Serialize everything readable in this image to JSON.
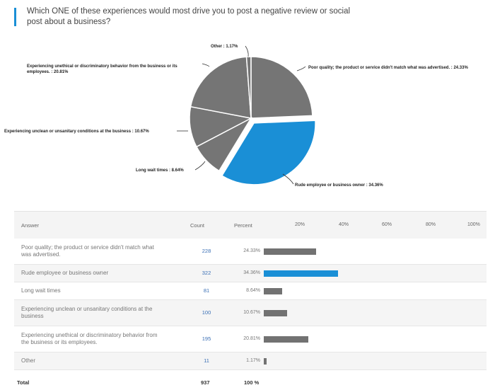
{
  "question": "Which ONE of these experiences would most drive you to post a negative review or social post about a business?",
  "colors": {
    "accent": "#1a8fd6",
    "slice": "#757575",
    "bar": "#727272"
  },
  "chart_data": {
    "type": "pie",
    "slices": [
      {
        "label": "Poor quality; the product or service didn't match what was advertised. : 24.33%",
        "value": 24.33,
        "highlight": false
      },
      {
        "label": "Rude employee or business owner : 34.36%",
        "value": 34.36,
        "highlight": true
      },
      {
        "label": "Long wait times : 8.64%",
        "value": 8.64,
        "highlight": false
      },
      {
        "label": "Experiencing unclean or unsanitary conditions at the business : 10.67%",
        "value": 10.67,
        "highlight": false
      },
      {
        "label": "Experiencing unethical or discriminatory behavior from the business or its employees. : 20.81%",
        "value": 20.81,
        "highlight": false
      },
      {
        "label": "Other : 1.17%",
        "value": 1.17,
        "highlight": false
      }
    ]
  },
  "table": {
    "headers": {
      "answer": "Answer",
      "count": "Count",
      "percent": "Percent"
    },
    "ticks": [
      "20%",
      "40%",
      "60%",
      "80%",
      "100%"
    ],
    "rows": [
      {
        "answer": "Poor quality; the product or service didn't match what was advertised.",
        "count": "228",
        "percent": "24.33%",
        "value": 24.33,
        "highlight": false
      },
      {
        "answer": "Rude employee or business owner",
        "count": "322",
        "percent": "34.36%",
        "value": 34.36,
        "highlight": true
      },
      {
        "answer": "Long wait times",
        "count": "81",
        "percent": "8.64%",
        "value": 8.64,
        "highlight": false
      },
      {
        "answer": "Experiencing unclean or unsanitary conditions at the business",
        "count": "100",
        "percent": "10.67%",
        "value": 10.67,
        "highlight": false
      },
      {
        "answer": "Experiencing unethical or discriminatory behavior from the business or its employees.",
        "count": "195",
        "percent": "20.81%",
        "value": 20.81,
        "highlight": false
      },
      {
        "answer": "Other",
        "count": "11",
        "percent": "1.17%",
        "value": 1.17,
        "highlight": false
      }
    ],
    "total": {
      "label": "Total",
      "count": "937",
      "percent": "100 %"
    }
  }
}
